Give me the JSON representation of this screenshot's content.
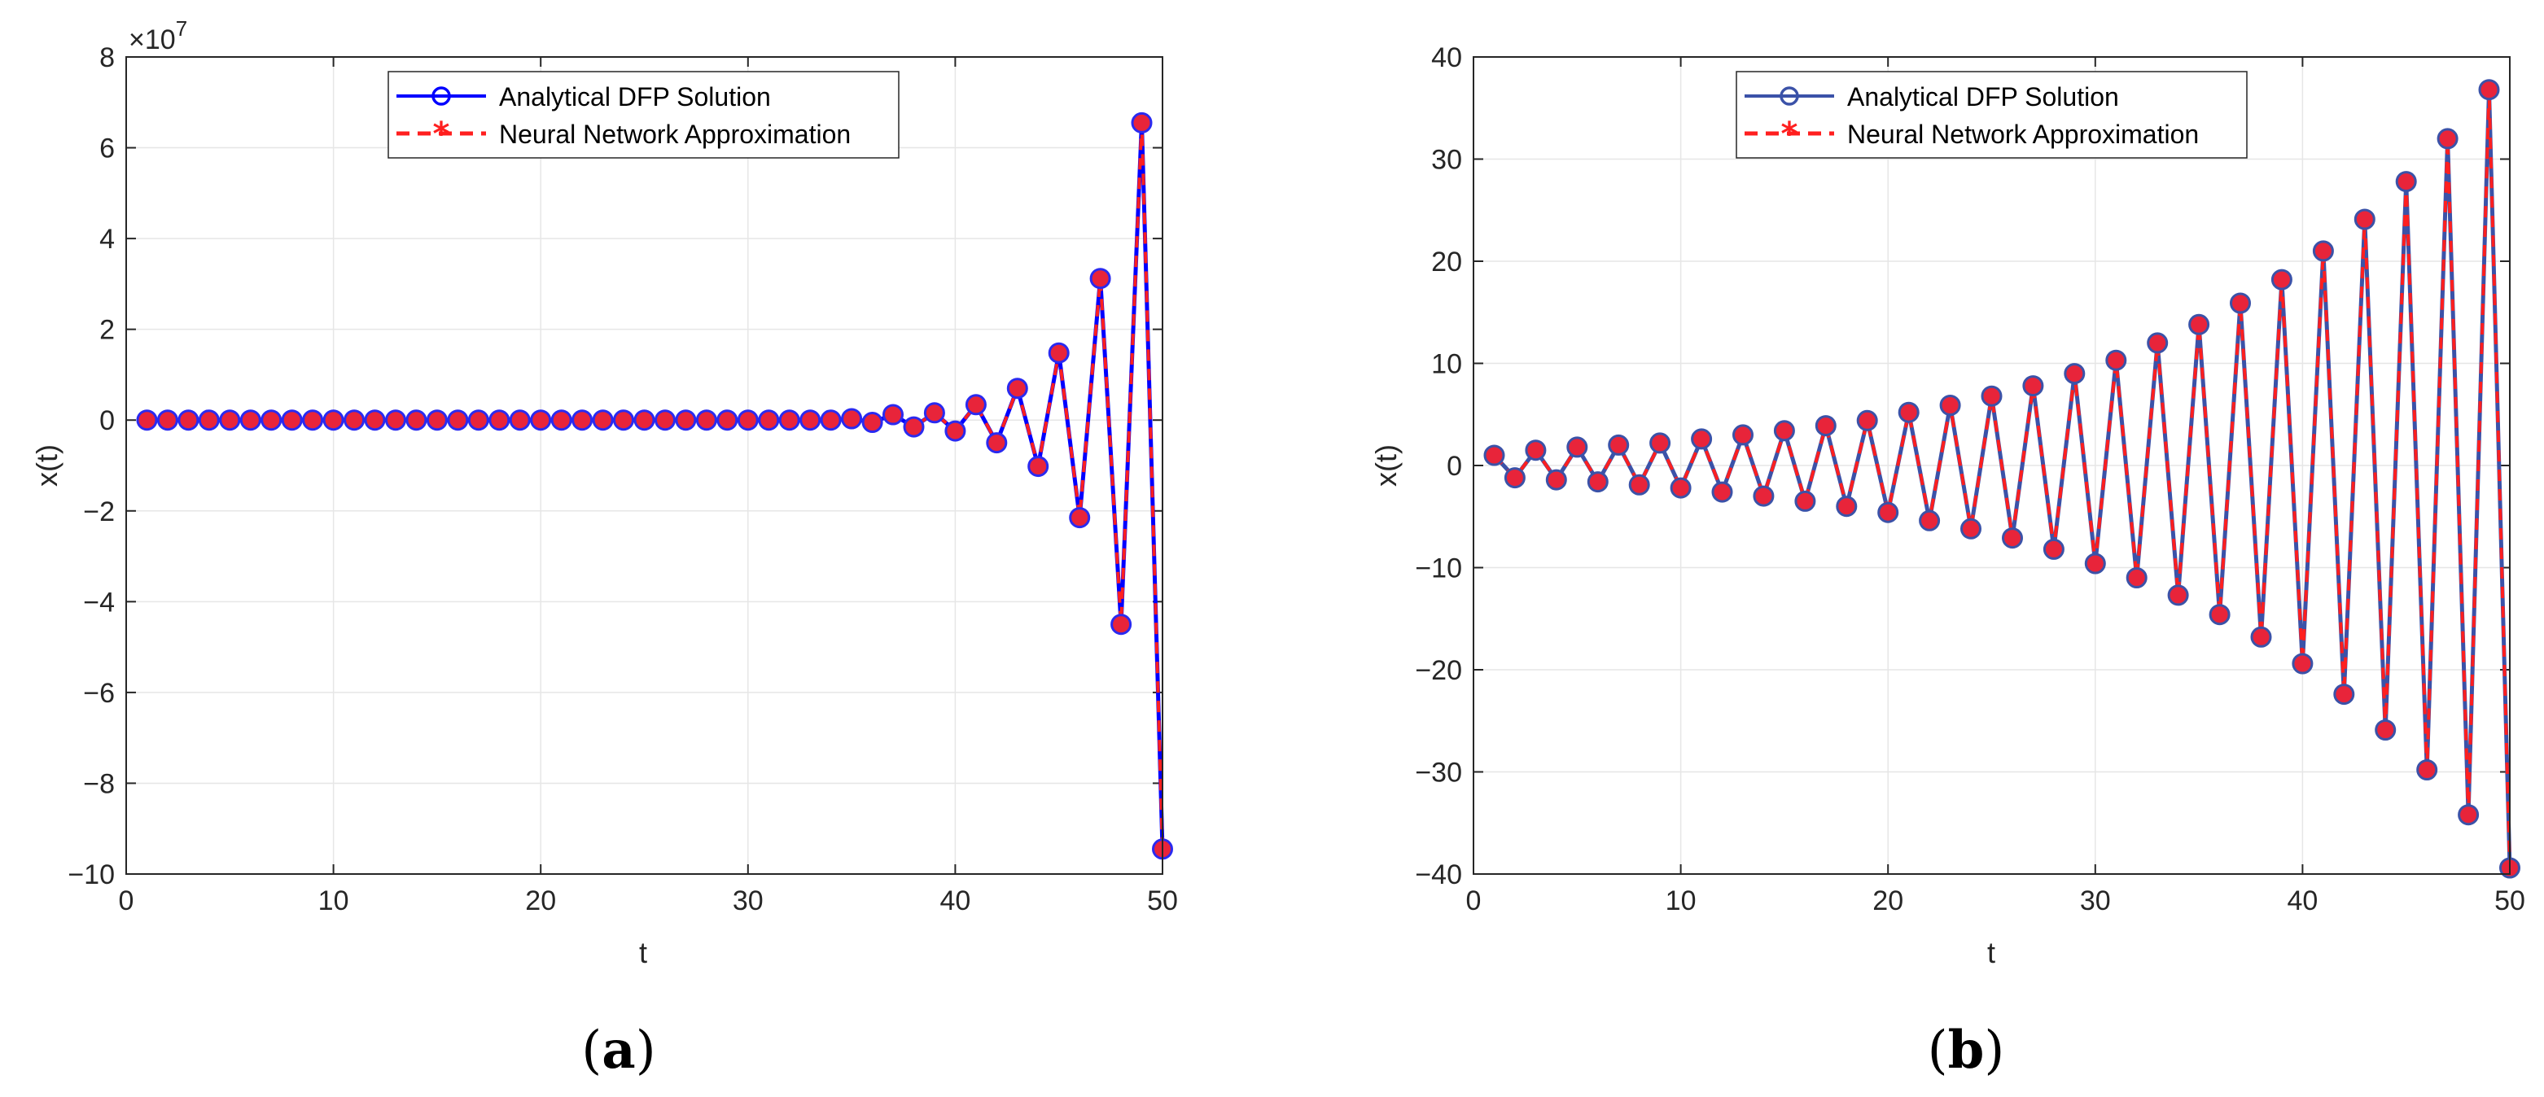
{
  "colors": {
    "analytical_a": "#0000ff",
    "analytical_b": "#3b52a8",
    "neural": "#ff1f1f",
    "marker_fill": "#e8243a",
    "marker_edge_a": "#2a2af0",
    "marker_edge_b": "#3b52a8",
    "grid": "#e6e6e6",
    "axis": "#262626"
  },
  "chart_data": [
    {
      "type": "line",
      "caption": {
        "open": "(",
        "letter": "a",
        "close": ")"
      },
      "xlabel": "t",
      "ylabel": "x(t)",
      "xlim": [
        0,
        50
      ],
      "ylim": [
        -10,
        8
      ],
      "exponent": {
        "base": "×10",
        "power": "7"
      },
      "xticks": [
        0,
        10,
        20,
        30,
        40,
        50
      ],
      "yticks": [
        8,
        6,
        4,
        2,
        0,
        -2,
        -4,
        -6,
        -8,
        -10
      ],
      "ytick_labels": [
        "8",
        "6",
        "4",
        "2",
        "0",
        "−2",
        "−4",
        "−6",
        "−8",
        "−10"
      ],
      "grid": true,
      "legend": "top-center",
      "x": [
        1,
        2,
        3,
        4,
        5,
        6,
        7,
        8,
        9,
        10,
        11,
        12,
        13,
        14,
        15,
        16,
        17,
        18,
        19,
        20,
        21,
        22,
        23,
        24,
        25,
        26,
        27,
        28,
        29,
        30,
        31,
        32,
        33,
        34,
        35,
        36,
        37,
        38,
        39,
        40,
        41,
        42,
        43,
        44,
        45,
        46,
        47,
        48,
        49,
        50
      ],
      "series": [
        {
          "name": "Analytical DFP Solution",
          "values": [
            0,
            0,
            0,
            0,
            0,
            0,
            0,
            0,
            0,
            0,
            0,
            0,
            0,
            0,
            0,
            0,
            0,
            0,
            0,
            0,
            0,
            0,
            0,
            0,
            0,
            0,
            0,
            0,
            0,
            0,
            0,
            0,
            0,
            0,
            0.03,
            -0.05,
            0.12,
            -0.15,
            0.16,
            -0.24,
            0.34,
            -0.5,
            0.7,
            -1.02,
            1.48,
            -2.15,
            3.12,
            -4.5,
            6.55,
            -9.45
          ]
        },
        {
          "name": "Neural Network Approximation",
          "values": [
            0,
            0,
            0,
            0,
            0,
            0,
            0,
            0,
            0,
            0,
            0,
            0,
            0,
            0,
            0,
            0,
            0,
            0,
            0,
            0,
            0,
            0,
            0,
            0,
            0,
            0,
            0,
            0,
            0,
            0,
            0,
            0,
            0,
            0,
            0.03,
            -0.05,
            0.12,
            -0.15,
            0.16,
            -0.24,
            0.34,
            -0.5,
            0.7,
            -1.02,
            1.48,
            -2.15,
            3.12,
            -4.5,
            6.55,
            -9.45
          ]
        }
      ]
    },
    {
      "type": "line",
      "caption": {
        "open": "(",
        "letter": "b",
        "close": ")"
      },
      "xlabel": "t",
      "ylabel": "x(t)",
      "xlim": [
        0,
        50
      ],
      "ylim": [
        -40,
        40
      ],
      "xticks": [
        0,
        10,
        20,
        30,
        40,
        50
      ],
      "yticks": [
        40,
        30,
        20,
        10,
        0,
        -10,
        -20,
        -30,
        -40
      ],
      "ytick_labels": [
        "40",
        "30",
        "20",
        "10",
        "0",
        "−10",
        "−20",
        "−30",
        "−40"
      ],
      "grid": true,
      "legend": "top-center",
      "x": [
        1,
        2,
        3,
        4,
        5,
        6,
        7,
        8,
        9,
        10,
        11,
        12,
        13,
        14,
        15,
        16,
        17,
        18,
        19,
        20,
        21,
        22,
        23,
        24,
        25,
        26,
        27,
        28,
        29,
        30,
        31,
        32,
        33,
        34,
        35,
        36,
        37,
        38,
        39,
        40,
        41,
        42,
        43,
        44,
        45,
        46,
        47,
        48,
        49,
        50
      ],
      "series": [
        {
          "name": "Analytical DFP Solution",
          "values": [
            1.0,
            -1.2,
            1.5,
            -1.4,
            1.8,
            -1.6,
            2.0,
            -1.9,
            2.2,
            -2.2,
            2.6,
            -2.6,
            3.0,
            -3.0,
            3.4,
            -3.5,
            3.9,
            -4.0,
            4.4,
            -4.6,
            5.2,
            -5.4,
            5.9,
            -6.2,
            6.8,
            -7.1,
            7.8,
            -8.2,
            9.0,
            -9.6,
            10.3,
            -11.0,
            12.0,
            -12.7,
            13.8,
            -14.6,
            15.9,
            -16.8,
            18.2,
            -19.4,
            21.0,
            -22.4,
            24.1,
            -25.9,
            27.8,
            -29.8,
            32.0,
            -34.2,
            36.8,
            -39.4
          ]
        },
        {
          "name": "Neural Network Approximation",
          "values": [
            1.0,
            -1.2,
            1.5,
            -1.4,
            1.8,
            -1.6,
            2.0,
            -1.9,
            2.2,
            -2.2,
            2.6,
            -2.6,
            3.0,
            -3.0,
            3.4,
            -3.5,
            3.9,
            -4.0,
            4.4,
            -4.6,
            5.2,
            -5.4,
            5.9,
            -6.2,
            6.8,
            -7.1,
            7.8,
            -8.2,
            9.0,
            -9.6,
            10.3,
            -11.0,
            12.0,
            -12.7,
            13.8,
            -14.6,
            15.9,
            -16.8,
            18.2,
            -19.4,
            21.0,
            -22.4,
            24.1,
            -25.9,
            27.8,
            -29.8,
            32.0,
            -34.2,
            36.8,
            -39.4
          ]
        }
      ]
    }
  ]
}
